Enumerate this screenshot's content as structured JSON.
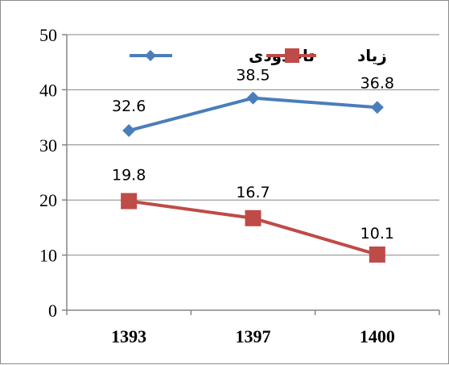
{
  "chart_data": {
    "type": "line",
    "categories": [
      "1393",
      "1397",
      "1400"
    ],
    "series": [
      {
        "name": "تاحدودی",
        "values": [
          32.6,
          38.5,
          36.8
        ],
        "color": "#4a7ebb",
        "marker": "diamond"
      },
      {
        "name": "زیاد",
        "values": [
          19.8,
          16.7,
          10.1
        ],
        "color": "#be4b48",
        "marker": "square"
      }
    ],
    "data_labels": [
      [
        "32.6",
        "38.5",
        "36.8"
      ],
      [
        "19.8",
        "16.7",
        "10.1"
      ]
    ],
    "ylim": [
      0,
      50
    ],
    "yticks": [
      "0",
      "10",
      "20",
      "30",
      "40",
      "50"
    ],
    "grid": true,
    "legend_position": "top"
  }
}
